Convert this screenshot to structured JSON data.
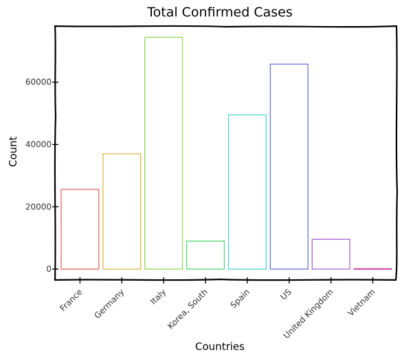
{
  "chart_data": {
    "type": "bar",
    "title": "Total Confirmed Cases",
    "xlabel": "Countries",
    "ylabel": "Count",
    "categories": [
      "France",
      "Germany",
      "Italy",
      "Korea, South",
      "Spain",
      "US",
      "United Kingdom",
      "Vietnam"
    ],
    "values": [
      25600,
      37000,
      74400,
      9000,
      49500,
      65800,
      9600,
      150
    ],
    "ylim": [
      -3500,
      78000
    ],
    "yticks": [
      0,
      20000,
      40000,
      60000
    ],
    "ytick_labels": [
      "0",
      "20000",
      "40000",
      "60000"
    ],
    "colors": [
      "#e05a5a",
      "#d9b43a",
      "#8ad44a",
      "#4ad46a",
      "#3ad4d4",
      "#5a6ad4",
      "#9a5ad4",
      "#d44aa8"
    ],
    "grid": false,
    "legend": "none"
  }
}
